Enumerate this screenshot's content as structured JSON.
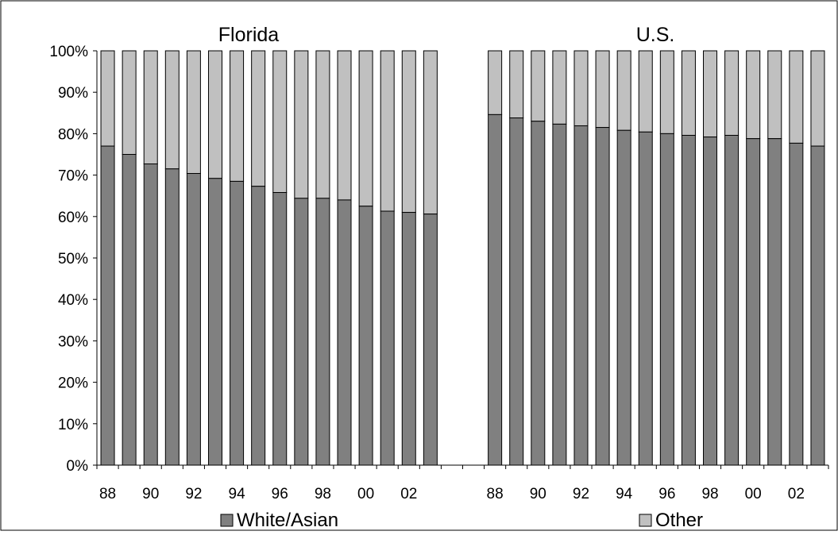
{
  "chart_data": {
    "type": "bar",
    "stacked": true,
    "percent": true,
    "ylim": [
      0,
      100
    ],
    "yticks": [
      "0%",
      "10%",
      "20%",
      "30%",
      "40%",
      "50%",
      "60%",
      "70%",
      "80%",
      "90%",
      "100%"
    ],
    "tick_labels": [
      "88",
      "90",
      "92",
      "94",
      "96",
      "98",
      "00",
      "02"
    ],
    "groups": [
      {
        "title": "Florida",
        "categories": [
          "88",
          "89",
          "90",
          "91",
          "92",
          "93",
          "94",
          "95",
          "96",
          "97",
          "98",
          "99",
          "00",
          "01",
          "02",
          "03"
        ],
        "white_asian": [
          77,
          75,
          72.7,
          71.5,
          70.4,
          69.2,
          68.5,
          67.3,
          65.8,
          64.4,
          64.4,
          64,
          62.5,
          61.3,
          61,
          60.6
        ]
      },
      {
        "title": "U.S.",
        "categories": [
          "88",
          "89",
          "90",
          "91",
          "92",
          "93",
          "94",
          "95",
          "96",
          "97",
          "98",
          "99",
          "00",
          "01",
          "02",
          "03"
        ],
        "white_asian": [
          84.6,
          83.8,
          83,
          82.3,
          81.9,
          81.5,
          80.8,
          80.4,
          80,
          79.6,
          79.2,
          79.6,
          78.8,
          78.8,
          77.7,
          77
        ]
      }
    ],
    "series": [
      {
        "name": "White/Asian",
        "color": "#808080"
      },
      {
        "name": "Other",
        "color": "#c0c0c0"
      }
    ],
    "legend_position": "bottom",
    "grid": false
  }
}
